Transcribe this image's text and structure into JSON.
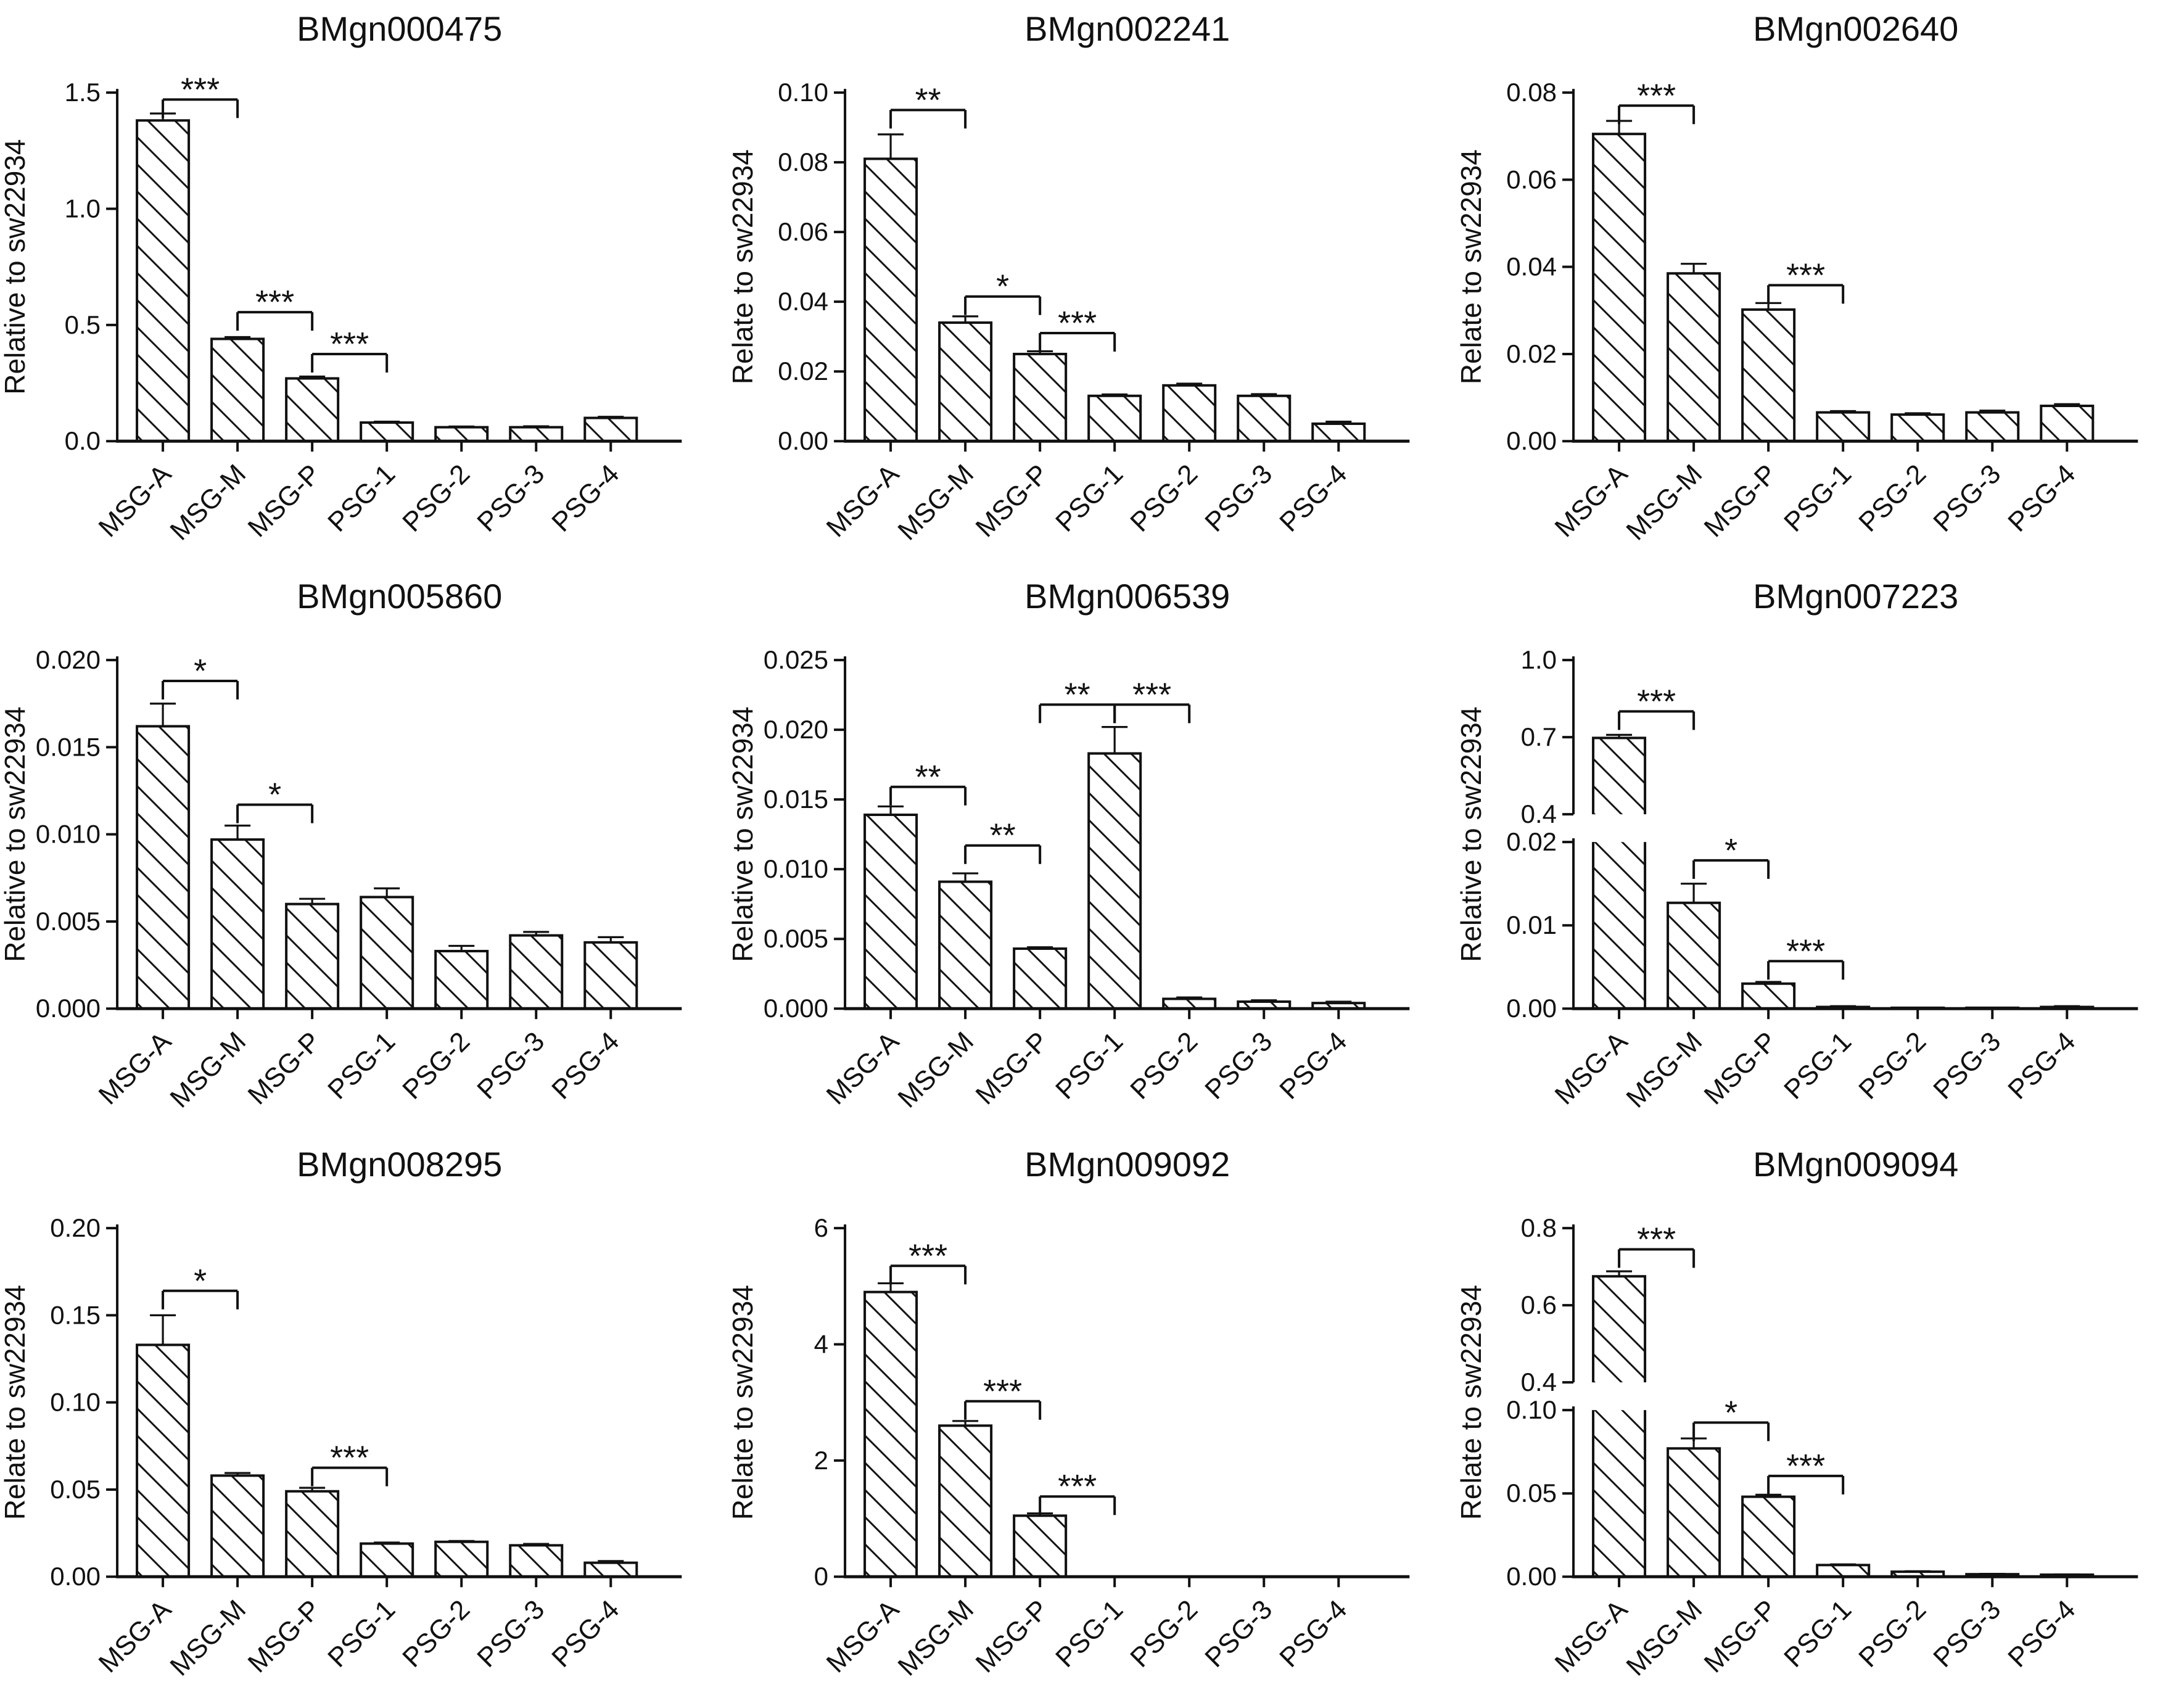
{
  "figure": {
    "background": "#ffffff",
    "ink": "#111111",
    "grid": {
      "rows": 3,
      "cols": 3
    },
    "bar_style": {
      "fill": "#ffffff",
      "hatch": "diagonal-down",
      "error_bars": "upper"
    }
  },
  "chart_data": [
    {
      "type": "bar",
      "title": "BMgn000475",
      "ylabel": "Relative to sw22934",
      "xlabel": "",
      "categories": [
        "MSG-A",
        "MSG-M",
        "MSG-P",
        "PSG-1",
        "PSG-2",
        "PSG-3",
        "PSG-4"
      ],
      "values": [
        1.38,
        0.44,
        0.27,
        0.08,
        0.06,
        0.06,
        0.1
      ],
      "errors": [
        0.03,
        0.008,
        0.008,
        0.004,
        0.003,
        0.004,
        0.005
      ],
      "ylim": [
        0,
        1.5
      ],
      "yticks": {
        "values": [
          0,
          0.5,
          1.0,
          1.5
        ],
        "labels": [
          "0.0",
          "0.5",
          "1.0",
          "1.5"
        ]
      },
      "significance": [
        {
          "from": "MSG-A",
          "to": "MSG-M",
          "label": "***",
          "y": 1.47
        },
        {
          "from": "MSG-M",
          "to": "MSG-P",
          "label": "***",
          "y": 0.555
        },
        {
          "from": "MSG-P",
          "to": "PSG-1",
          "label": "***",
          "y": 0.375
        }
      ]
    },
    {
      "type": "bar",
      "title": "BMgn002241",
      "ylabel": "Relate to sw22934",
      "xlabel": "",
      "categories": [
        "MSG-A",
        "MSG-M",
        "MSG-P",
        "PSG-1",
        "PSG-2",
        "PSG-3",
        "PSG-4"
      ],
      "values": [
        0.081,
        0.034,
        0.025,
        0.013,
        0.016,
        0.013,
        0.005
      ],
      "errors": [
        0.007,
        0.0018,
        0.0008,
        0.0004,
        0.0005,
        0.0005,
        0.0006
      ],
      "ylim": [
        0,
        0.1
      ],
      "yticks": {
        "values": [
          0,
          0.02,
          0.04,
          0.06,
          0.08,
          0.1
        ],
        "labels": [
          "0.00",
          "0.02",
          "0.04",
          "0.06",
          "0.08",
          "0.10"
        ]
      },
      "significance": [
        {
          "from": "MSG-A",
          "to": "MSG-M",
          "label": "**",
          "y": 0.095
        },
        {
          "from": "MSG-M",
          "to": "MSG-P",
          "label": "*",
          "y": 0.0415
        },
        {
          "from": "MSG-P",
          "to": "PSG-1",
          "label": "***",
          "y": 0.031
        }
      ]
    },
    {
      "type": "bar",
      "title": "BMgn002640",
      "ylabel": "Relate to sw22934",
      "xlabel": "",
      "categories": [
        "MSG-A",
        "MSG-M",
        "MSG-P",
        "PSG-1",
        "PSG-2",
        "PSG-3",
        "PSG-4"
      ],
      "values": [
        0.0705,
        0.0385,
        0.0302,
        0.0066,
        0.0061,
        0.0066,
        0.0081
      ],
      "errors": [
        0.003,
        0.0022,
        0.0015,
        0.0003,
        0.0003,
        0.0004,
        0.0004
      ],
      "ylim": [
        0,
        0.08
      ],
      "yticks": {
        "values": [
          0,
          0.02,
          0.04,
          0.06,
          0.08
        ],
        "labels": [
          "0.00",
          "0.02",
          "0.04",
          "0.06",
          "0.08"
        ]
      },
      "significance": [
        {
          "from": "MSG-A",
          "to": "MSG-M",
          "label": "***",
          "y": 0.077
        },
        {
          "from": "MSG-P",
          "to": "PSG-1",
          "label": "***",
          "y": 0.0358
        }
      ]
    },
    {
      "type": "bar",
      "title": "BMgn005860",
      "ylabel": "Relative to sw22934",
      "xlabel": "",
      "categories": [
        "MSG-A",
        "MSG-M",
        "MSG-P",
        "PSG-1",
        "PSG-2",
        "PSG-3",
        "PSG-4"
      ],
      "values": [
        0.0162,
        0.0097,
        0.006,
        0.0064,
        0.0033,
        0.0042,
        0.0038
      ],
      "errors": [
        0.0013,
        0.0008,
        0.0003,
        0.0005,
        0.0003,
        0.0002,
        0.0003
      ],
      "ylim": [
        0,
        0.02
      ],
      "yticks": {
        "values": [
          0,
          0.005,
          0.01,
          0.015,
          0.02
        ],
        "labels": [
          "0.000",
          "0.005",
          "0.010",
          "0.015",
          "0.020"
        ]
      },
      "significance": [
        {
          "from": "MSG-A",
          "to": "MSG-M",
          "label": "*",
          "y": 0.0188
        },
        {
          "from": "MSG-M",
          "to": "MSG-P",
          "label": "*",
          "y": 0.0117
        }
      ]
    },
    {
      "type": "bar",
      "title": "BMgn006539",
      "ylabel": "Relative to sw22934",
      "xlabel": "",
      "categories": [
        "MSG-A",
        "MSG-M",
        "MSG-P",
        "PSG-1",
        "PSG-2",
        "PSG-3",
        "PSG-4"
      ],
      "values": [
        0.0139,
        0.0091,
        0.0043,
        0.0183,
        0.0007,
        0.0005,
        0.0004
      ],
      "errors": [
        0.0006,
        0.0006,
        0.0001,
        0.0019,
        0.0001,
        0.0001,
        0.0001
      ],
      "ylim": [
        0,
        0.025
      ],
      "yticks": {
        "values": [
          0,
          0.005,
          0.01,
          0.015,
          0.02,
          0.025
        ],
        "labels": [
          "0.000",
          "0.005",
          "0.010",
          "0.015",
          "0.020",
          "0.025"
        ]
      },
      "significance": [
        {
          "from": "MSG-A",
          "to": "MSG-M",
          "label": "**",
          "y": 0.0159
        },
        {
          "from": "MSG-M",
          "to": "MSG-P",
          "label": "**",
          "y": 0.0117
        },
        {
          "from": "MSG-P",
          "to": "PSG-1",
          "label": "**",
          "y": 0.0218
        },
        {
          "from": "PSG-1",
          "to": "PSG-2",
          "label": "***",
          "y": 0.0218
        }
      ]
    },
    {
      "type": "bar",
      "title": "BMgn007223",
      "ylabel": "Relative to sw22934",
      "xlabel": "",
      "broken_axis": true,
      "categories": [
        "MSG-A",
        "MSG-M",
        "MSG-P",
        "PSG-1",
        "PSG-2",
        "PSG-3",
        "PSG-4"
      ],
      "values": [
        0.697,
        0.0127,
        0.003,
        0.0002,
        0.0001,
        0.0001,
        0.0002
      ],
      "errors": [
        0.012,
        0.0023,
        0.0002,
        0.0001,
        0,
        0,
        0.0001
      ],
      "upper": {
        "ylim": [
          0.4,
          1.0
        ],
        "yticks": {
          "values": [
            0.4,
            0.7,
            1.0
          ],
          "labels": [
            "0.4",
            "0.7",
            "1.0"
          ]
        }
      },
      "lower": {
        "ylim": [
          0,
          0.02
        ],
        "yticks": {
          "values": [
            0,
            0.01,
            0.02
          ],
          "labels": [
            "0.00",
            "0.01",
            "0.02"
          ]
        }
      },
      "significance": [
        {
          "from": "MSG-A",
          "to": "MSG-M",
          "label": "***",
          "panel": "upper",
          "y": 0.8
        },
        {
          "from": "MSG-M",
          "to": "MSG-P",
          "label": "*",
          "panel": "lower",
          "y": 0.0178
        },
        {
          "from": "MSG-P",
          "to": "PSG-1",
          "label": "***",
          "panel": "lower",
          "y": 0.0057
        }
      ]
    },
    {
      "type": "bar",
      "title": "BMgn008295",
      "ylabel": "Relate to sw22934",
      "xlabel": "",
      "categories": [
        "MSG-A",
        "MSG-M",
        "MSG-P",
        "PSG-1",
        "PSG-2",
        "PSG-3",
        "PSG-4"
      ],
      "values": [
        0.133,
        0.058,
        0.049,
        0.019,
        0.02,
        0.018,
        0.008
      ],
      "errors": [
        0.017,
        0.0015,
        0.002,
        0.0006,
        0.0005,
        0.0008,
        0.001
      ],
      "ylim": [
        0,
        0.2
      ],
      "yticks": {
        "values": [
          0,
          0.05,
          0.1,
          0.15,
          0.2
        ],
        "labels": [
          "0.00",
          "0.05",
          "0.10",
          "0.15",
          "0.20"
        ]
      },
      "significance": [
        {
          "from": "MSG-A",
          "to": "MSG-M",
          "label": "*",
          "y": 0.164
        },
        {
          "from": "MSG-P",
          "to": "PSG-1",
          "label": "***",
          "y": 0.0625
        }
      ]
    },
    {
      "type": "bar",
      "title": "BMgn009092",
      "ylabel": "Relate to sw22934",
      "xlabel": "",
      "categories": [
        "MSG-A",
        "MSG-M",
        "MSG-P",
        "PSG-1",
        "PSG-2",
        "PSG-3",
        "PSG-4"
      ],
      "values": [
        4.9,
        2.6,
        1.05,
        0,
        0,
        0,
        0
      ],
      "errors": [
        0.15,
        0.08,
        0.04,
        0,
        0,
        0,
        0
      ],
      "ylim": [
        0,
        6
      ],
      "yticks": {
        "values": [
          0,
          2,
          4,
          6
        ],
        "labels": [
          "0",
          "2",
          "4",
          "6"
        ]
      },
      "significance": [
        {
          "from": "MSG-A",
          "to": "MSG-M",
          "label": "***",
          "y": 5.35
        },
        {
          "from": "MSG-M",
          "to": "MSG-P",
          "label": "***",
          "y": 3.02
        },
        {
          "from": "MSG-P",
          "to": "PSG-1",
          "label": "***",
          "y": 1.38
        }
      ]
    },
    {
      "type": "bar",
      "title": "BMgn009094",
      "ylabel": "Relate to sw22934",
      "xlabel": "",
      "broken_axis": true,
      "categories": [
        "MSG-A",
        "MSG-M",
        "MSG-P",
        "PSG-1",
        "PSG-2",
        "PSG-3",
        "PSG-4"
      ],
      "values": [
        0.675,
        0.077,
        0.048,
        0.007,
        0.003,
        0.0015,
        0.0012
      ],
      "errors": [
        0.013,
        0.006,
        0.0012,
        0.0004,
        0.0003,
        0.0002,
        0.0002
      ],
      "upper": {
        "ylim": [
          0.4,
          0.8
        ],
        "yticks": {
          "values": [
            0.4,
            0.6,
            0.8
          ],
          "labels": [
            "0.4",
            "0.6",
            "0.8"
          ]
        }
      },
      "lower": {
        "ylim": [
          0,
          0.1
        ],
        "yticks": {
          "values": [
            0,
            0.05,
            0.1
          ],
          "labels": [
            "0.00",
            "0.05",
            "0.10"
          ]
        }
      },
      "significance": [
        {
          "from": "MSG-A",
          "to": "MSG-M",
          "label": "***",
          "panel": "upper",
          "y": 0.745
        },
        {
          "from": "MSG-M",
          "to": "MSG-P",
          "label": "*",
          "panel": "lower",
          "y": 0.0925
        },
        {
          "from": "MSG-P",
          "to": "PSG-1",
          "label": "***",
          "panel": "lower",
          "y": 0.0605
        }
      ]
    }
  ]
}
